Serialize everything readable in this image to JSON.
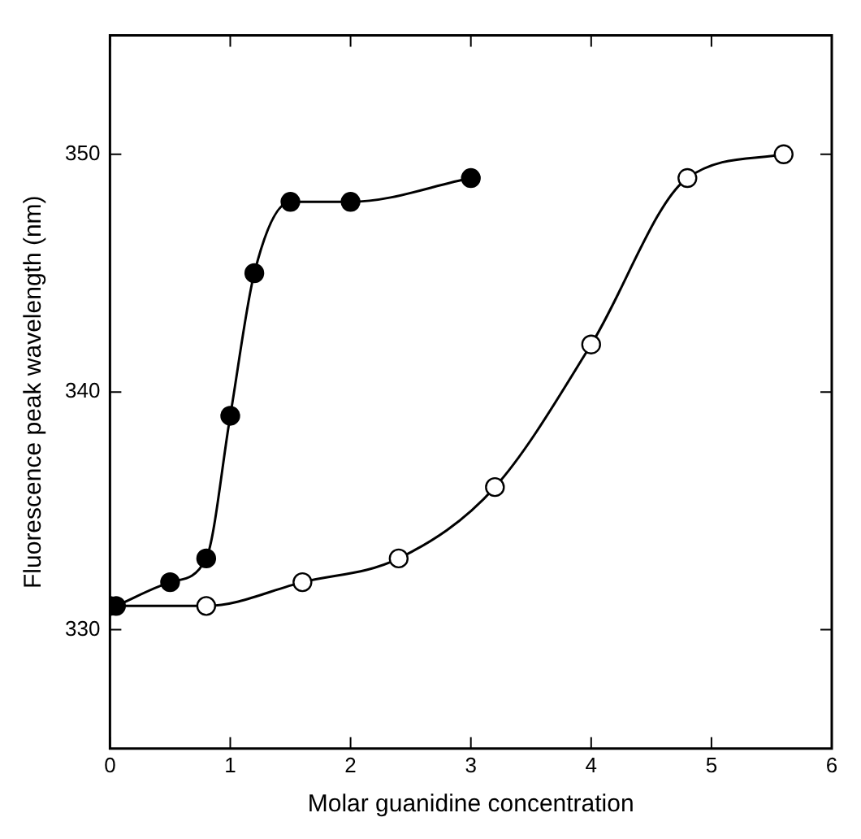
{
  "chart_data": {
    "type": "line",
    "xlabel": "Molar guanidine concentration",
    "ylabel": "Fluorescence peak wavelength (nm)",
    "xlim": [
      0,
      6
    ],
    "xticks": [
      0,
      1,
      2,
      3,
      4,
      5,
      6
    ],
    "ylim": [
      325,
      355
    ],
    "yticks": [
      330,
      340,
      350
    ],
    "grid": false,
    "legend": false,
    "marker": "circle",
    "line_style": "solid",
    "series": [
      {
        "color": "#000000",
        "x": [
          0.05,
          0.5,
          0.8,
          1.0,
          1.2,
          1.5,
          2.0,
          3.0
        ],
        "values": [
          331,
          332,
          333,
          339,
          345,
          348,
          348,
          349
        ]
      },
      {
        "color": "#000000",
        "x": [
          0,
          0.8,
          1.6,
          2.4,
          3.2,
          4.0,
          4.8,
          5.6
        ],
        "values": [
          331,
          331,
          332,
          333,
          336,
          342,
          349,
          350
        ]
      }
    ]
  }
}
